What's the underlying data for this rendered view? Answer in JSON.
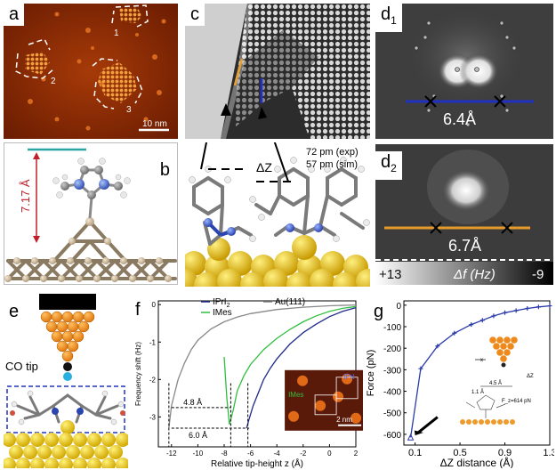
{
  "labels": {
    "a": "a",
    "b": "b",
    "c": "c",
    "d1_main": "d",
    "d1_sub": "1",
    "d2_main": "d",
    "d2_sub": "2",
    "e": "e",
    "f": "f",
    "g": "g"
  },
  "panel_a": {
    "island_1": "1",
    "island_2": "2",
    "island_3": "3",
    "scalebar": "10 nm"
  },
  "panel_b": {
    "height": "7.17 Å"
  },
  "panel_c": {
    "exp": "72 pm (exp)",
    "sim": "57 pm (sim)",
    "dz": "ΔZ"
  },
  "panel_d1": {
    "distance": "6.4Å"
  },
  "panel_d2": {
    "distance": "6.7Å",
    "cbar_max": "+13",
    "cbar_label": "Δf (Hz)",
    "cbar_min": "-9"
  },
  "panel_e": {
    "tip_label": "CO tip"
  },
  "panel_f": {
    "colors": {
      "ipri2": "#1f2a8a",
      "au": "#888888",
      "imes": "#2fbf3f"
    },
    "chart_data": {
      "type": "line",
      "xlabel": "Relative tip-height z (Å)",
      "ylabel": "Frequency shift (Hz)",
      "xlim": [
        -13,
        2
      ],
      "ylim": [
        -3.8,
        0.1
      ],
      "xticks": [
        "-12",
        "-10",
        "-8",
        "-6",
        "-4",
        "-2",
        "0",
        "2"
      ],
      "yticks": [
        "0",
        "-1",
        "-2",
        "-3"
      ],
      "series": [
        {
          "name": "IPrI2",
          "x": [
            -6.3,
            -6.1,
            -5.8,
            -5.4,
            -5,
            -4.5,
            -4,
            -3,
            -2,
            -1,
            0,
            1,
            2
          ],
          "y": [
            -3.3,
            -3.05,
            -2.7,
            -2.35,
            -2.0,
            -1.7,
            -1.45,
            -1.05,
            -0.75,
            -0.52,
            -0.32,
            -0.18,
            -0.08
          ]
        },
        {
          "name": "Au(111)",
          "x": [
            -12.2,
            -12,
            -11.5,
            -11,
            -10.5,
            -10,
            -9,
            -8,
            -7,
            -6,
            -4,
            -2,
            0,
            2
          ],
          "y": [
            -3.3,
            -2.7,
            -2.0,
            -1.55,
            -1.2,
            -0.95,
            -0.65,
            -0.46,
            -0.33,
            -0.24,
            -0.13,
            -0.07,
            -0.03,
            -0.01
          ]
        },
        {
          "name": "IMes",
          "x": [
            -8.0,
            -7.8,
            -7.6,
            -7.3,
            -7.0,
            -6.5,
            -6,
            -5,
            -4,
            -3,
            -2,
            -1,
            0,
            1,
            2
          ],
          "y": [
            -1.4,
            -2.5,
            -3.2,
            -2.8,
            -2.3,
            -1.9,
            -1.6,
            -1.2,
            -0.9,
            -0.66,
            -0.46,
            -0.3,
            -0.18,
            -0.1,
            -0.05
          ]
        }
      ],
      "annotations": [
        "4.8 Å",
        "6.0 Å"
      ],
      "inset": {
        "ipri": "IPrI",
        "imes": "IMes",
        "scalebar": "2 nm"
      }
    }
  },
  "panel_g": {
    "color": "#2a3aa8",
    "chart_data": {
      "type": "line",
      "xlabel": "ΔZ distance (Å)",
      "ylabel": "Force (pN)",
      "xlim": [
        0,
        1.3
      ],
      "ylim": [
        -650,
        20
      ],
      "xticks": [
        "0.1",
        "0.5",
        "0.9",
        "1.3"
      ],
      "yticks": [
        "0",
        "-100",
        "-200",
        "-300",
        "-400",
        "-500",
        "-600"
      ],
      "series": [
        {
          "name": "",
          "x": [
            0.06,
            0.15,
            0.3,
            0.45,
            0.6,
            0.7,
            0.8,
            0.9,
            1.0,
            1.1,
            1.2,
            1.3
          ],
          "y": [
            -614,
            -295,
            -190,
            -130,
            -90,
            -70,
            -50,
            -35,
            -25,
            -15,
            -8,
            -3
          ]
        }
      ],
      "schematic": {
        "x_label": "x",
        "dz_label": "ΔZ",
        "dist_45": "4.5 Å",
        "dist_11": "1.1 Å",
        "fz": "F_z=614 pN"
      }
    }
  }
}
